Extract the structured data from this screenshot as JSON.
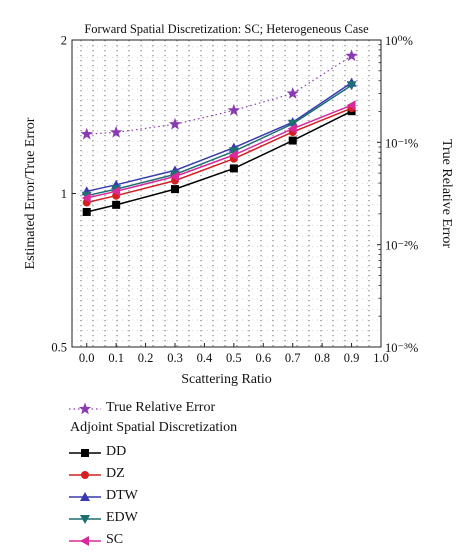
{
  "chart_data": {
    "type": "line",
    "title": "Forward Spatial Discretization: SC; Heterogeneous Case",
    "xlabel": "Scattering Ratio",
    "ylabel": "Estimated Error/True Error",
    "y2label": "True Relative Error",
    "x": [
      0.0,
      0.1,
      0.3,
      0.5,
      0.7,
      0.9
    ],
    "xlim": [
      -0.05,
      1.0
    ],
    "xticks": [
      "0.0",
      "0.1",
      "0.2",
      "0.3",
      "0.4",
      "0.5",
      "0.6",
      "0.7",
      "0.8",
      "0.9",
      "1.0"
    ],
    "ylim": [
      0.5,
      2
    ],
    "yscale": "log",
    "yticks": [
      "0.5",
      "1",
      "2"
    ],
    "y2lim": [
      0.001,
      1
    ],
    "y2scale": "log",
    "y2ticks": [
      "10⁰%",
      "10⁻¹%",
      "10⁻²%",
      "10⁻³%"
    ],
    "grid": "dotted",
    "series": [
      {
        "name": "DD",
        "color": "#000000",
        "marker": "square",
        "axis": "left",
        "values": [
          0.92,
          0.95,
          1.02,
          1.12,
          1.27,
          1.45
        ]
      },
      {
        "name": "DZ",
        "color": "#d42020",
        "marker": "circle",
        "axis": "left",
        "values": [
          0.96,
          0.99,
          1.06,
          1.17,
          1.32,
          1.47
        ]
      },
      {
        "name": "DTW",
        "color": "#3a3ab0",
        "marker": "triangle-up",
        "axis": "left",
        "values": [
          1.01,
          1.04,
          1.11,
          1.23,
          1.38,
          1.65
        ]
      },
      {
        "name": "EDW",
        "color": "#1d6f74",
        "marker": "triangle-down",
        "axis": "left",
        "values": [
          0.99,
          1.02,
          1.09,
          1.21,
          1.37,
          1.63
        ]
      },
      {
        "name": "SC",
        "color": "#d82a9c",
        "marker": "triangle-left",
        "axis": "left",
        "values": [
          0.98,
          1.01,
          1.08,
          1.19,
          1.34,
          1.49
        ]
      },
      {
        "name": "True Relative Error",
        "color": "#8a3ab2",
        "marker": "star",
        "line": "dotted",
        "axis": "right",
        "values": [
          0.12,
          0.125,
          0.15,
          0.205,
          0.3,
          0.7
        ]
      }
    ]
  },
  "legend": {
    "true_error": "True Relative Error",
    "heading": "Adjoint Spatial Discretization",
    "items": [
      "DD",
      "DZ",
      "DTW",
      "EDW",
      "SC"
    ]
  }
}
